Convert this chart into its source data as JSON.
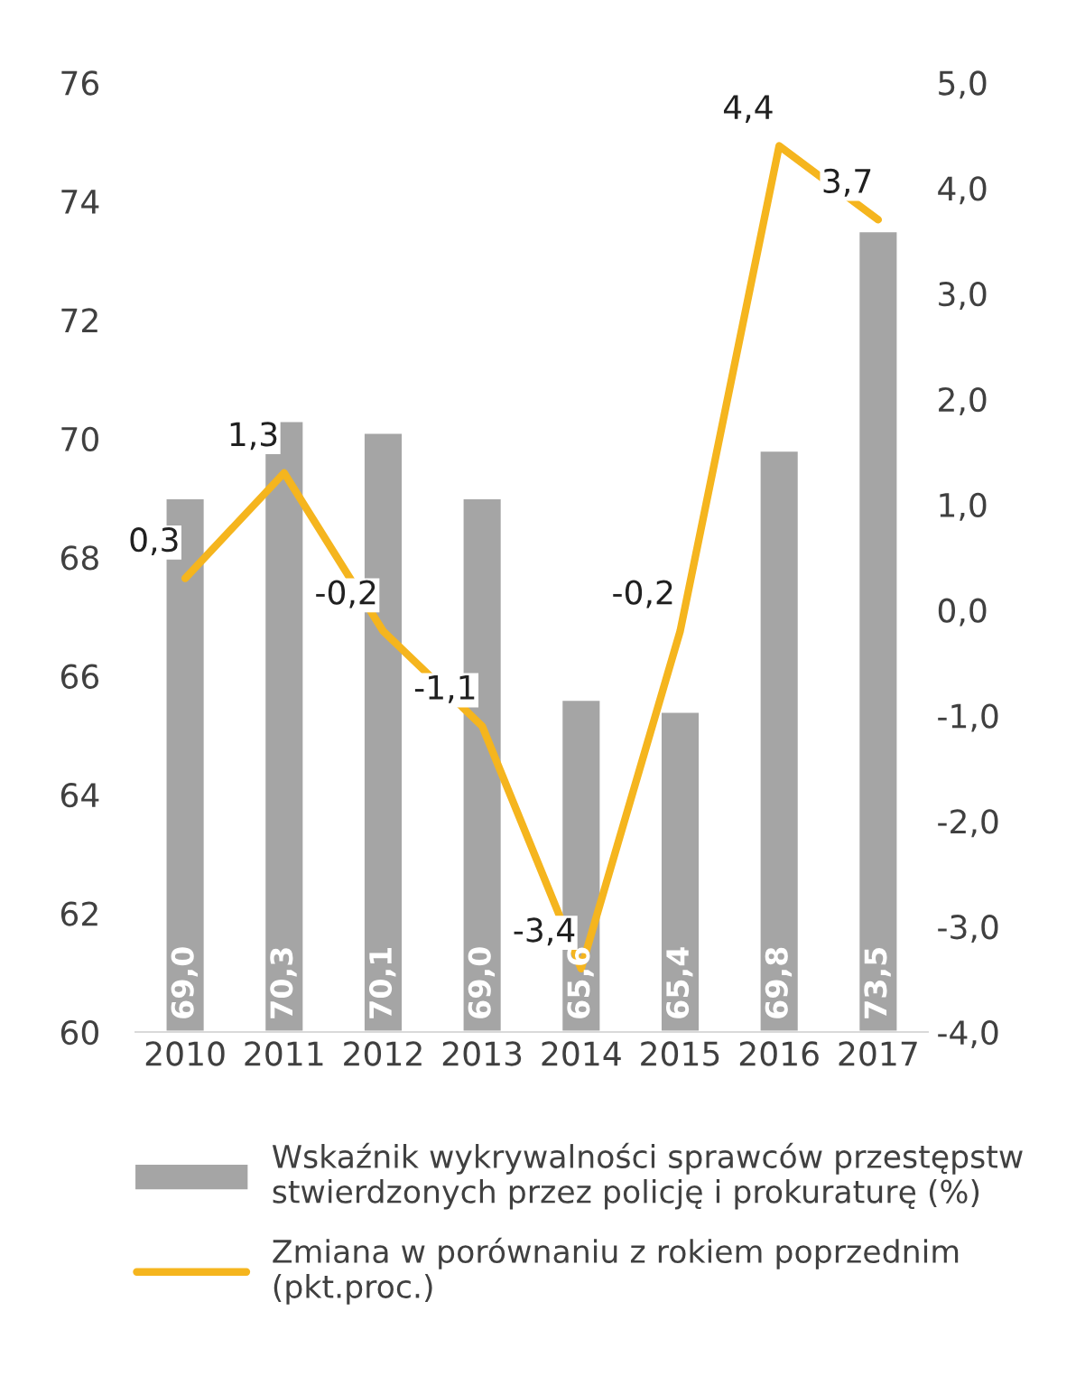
{
  "chart_data": {
    "type": "bar",
    "categories": [
      "2010",
      "2011",
      "2012",
      "2013",
      "2014",
      "2015",
      "2016",
      "2017"
    ],
    "series": [
      {
        "name": "Wskaźnik wykrywalności sprawców przestępstw\nstwierdzonych przez policję i prokuraturę (%)",
        "color": "#a5a5a5",
        "values": [
          69.0,
          70.3,
          70.1,
          69.0,
          65.6,
          65.4,
          69.8,
          73.5
        ],
        "value_labels": [
          "69,0",
          "70,3",
          "70,1",
          "69,0",
          "65,6",
          "65,4",
          "69,8",
          "73,5"
        ]
      },
      {
        "name": "Zmiana w porównaniu z rokiem poprzednim\n(pkt.proc.)",
        "type": "line",
        "axis": "y2",
        "color": "#f5b51e",
        "values": [
          0.3,
          1.3,
          -0.2,
          -1.1,
          -3.4,
          -0.2,
          4.4,
          3.7
        ],
        "value_labels": [
          "0,3",
          "1,3",
          "-0,2",
          "-1,1",
          "-3,4",
          "-0,2",
          "4,4",
          "3,7"
        ]
      }
    ],
    "ylim": [
      60,
      76
    ],
    "yticks": [
      60,
      62,
      64,
      66,
      68,
      70,
      72,
      74,
      76
    ],
    "y2lim": [
      -4,
      5
    ],
    "y2ticks": [
      {
        "value": -4,
        "label": "-4,0"
      },
      {
        "value": -3,
        "label": "-3,0"
      },
      {
        "value": -2,
        "label": "-2,0"
      },
      {
        "value": -1,
        "label": "-1,0"
      },
      {
        "value": 0,
        "label": "0,0"
      },
      {
        "value": 1,
        "label": "1,0"
      },
      {
        "value": 2,
        "label": "2,0"
      },
      {
        "value": 3,
        "label": "3,0"
      },
      {
        "value": 4,
        "label": "4,0"
      },
      {
        "value": 5,
        "label": "5,0"
      }
    ],
    "grid": false,
    "legend": "bottom",
    "marker": "none",
    "line_style": "solid"
  }
}
